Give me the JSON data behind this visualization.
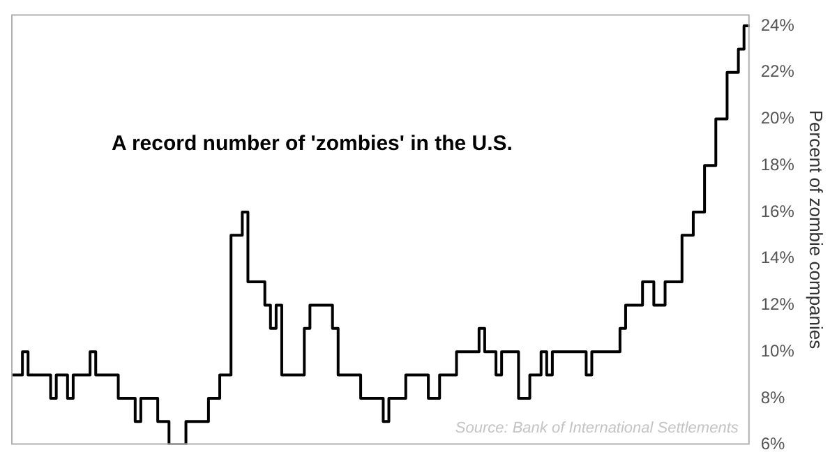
{
  "chart_data": {
    "type": "step",
    "title": "A record number of 'zombies' in the U.S.",
    "ylabel": "Percent of zombie companies",
    "annotations": [
      "Source: Bank of International Settlements"
    ],
    "categories": [
      null,
      null,
      null,
      null,
      null,
      null,
      null,
      null,
      null,
      null,
      null,
      null,
      null,
      null,
      null,
      null,
      null,
      null,
      null,
      null,
      null,
      null,
      null,
      null,
      null,
      null,
      null,
      null,
      null,
      null,
      null,
      null,
      null,
      null,
      null,
      null,
      null,
      null,
      null,
      null,
      null,
      null,
      null,
      null,
      null,
      null,
      null,
      null,
      null,
      null,
      null,
      null,
      null,
      null,
      null,
      null,
      null,
      null,
      null,
      null,
      null,
      null,
      null,
      null,
      null,
      null,
      null,
      null,
      null,
      null,
      null,
      null,
      null,
      null,
      null,
      null,
      null,
      null,
      null,
      null,
      null,
      null,
      null,
      null,
      null,
      null,
      null,
      null,
      null,
      null,
      null,
      null,
      null,
      null,
      null,
      null,
      null,
      null,
      null,
      null,
      null,
      null,
      null,
      null,
      null,
      null,
      null,
      null,
      null,
      null,
      null,
      null,
      null,
      null,
      null,
      null,
      null,
      null,
      null,
      null,
      null,
      null,
      null,
      null,
      null,
      null,
      null,
      null,
      null,
      null,
      null,
      null
    ],
    "series": [
      {
        "color": "#000000",
        "values": [
          9,
          9,
          9,
          10,
          9,
          9,
          9,
          9,
          8,
          9,
          9,
          8,
          9,
          9,
          9,
          10,
          9,
          9,
          9,
          9,
          8,
          8,
          8,
          7,
          8,
          8,
          8,
          7,
          7,
          6,
          6,
          6,
          7,
          7,
          7,
          7,
          8,
          8,
          9,
          9,
          15,
          15,
          16,
          13,
          13,
          13,
          12,
          11,
          12,
          9,
          9,
          9,
          9,
          11,
          12,
          12,
          12,
          12,
          11,
          9,
          9,
          9,
          9,
          8,
          8,
          8,
          8,
          7,
          8,
          8,
          8,
          9,
          9,
          9,
          9,
          8,
          8,
          9,
          9,
          9,
          10,
          10,
          10,
          10,
          11,
          10,
          10,
          9,
          10,
          10,
          10,
          8,
          8,
          9,
          9,
          10,
          9,
          10,
          10,
          10,
          10,
          10,
          10,
          9,
          10,
          10,
          10,
          10,
          10,
          11,
          12,
          12,
          12,
          13,
          13,
          12,
          12,
          13,
          13,
          13,
          15,
          15,
          16,
          16,
          18,
          18,
          20,
          20,
          22,
          22,
          23,
          24
        ]
      }
    ],
    "ylim": [
      6,
      24.5
    ],
    "yticks": [
      {
        "value": 6,
        "label": "6%"
      },
      {
        "value": 8,
        "label": "8%"
      },
      {
        "value": 10,
        "label": "10%"
      },
      {
        "value": 12,
        "label": "12%"
      },
      {
        "value": 14,
        "label": "14%"
      },
      {
        "value": 16,
        "label": "16%"
      },
      {
        "value": 18,
        "label": "18%"
      },
      {
        "value": 20,
        "label": "20%"
      },
      {
        "value": 22,
        "label": "22%"
      },
      {
        "value": 24,
        "label": "24%"
      }
    ],
    "grid": false,
    "legend": false,
    "tick_labels": "y"
  }
}
